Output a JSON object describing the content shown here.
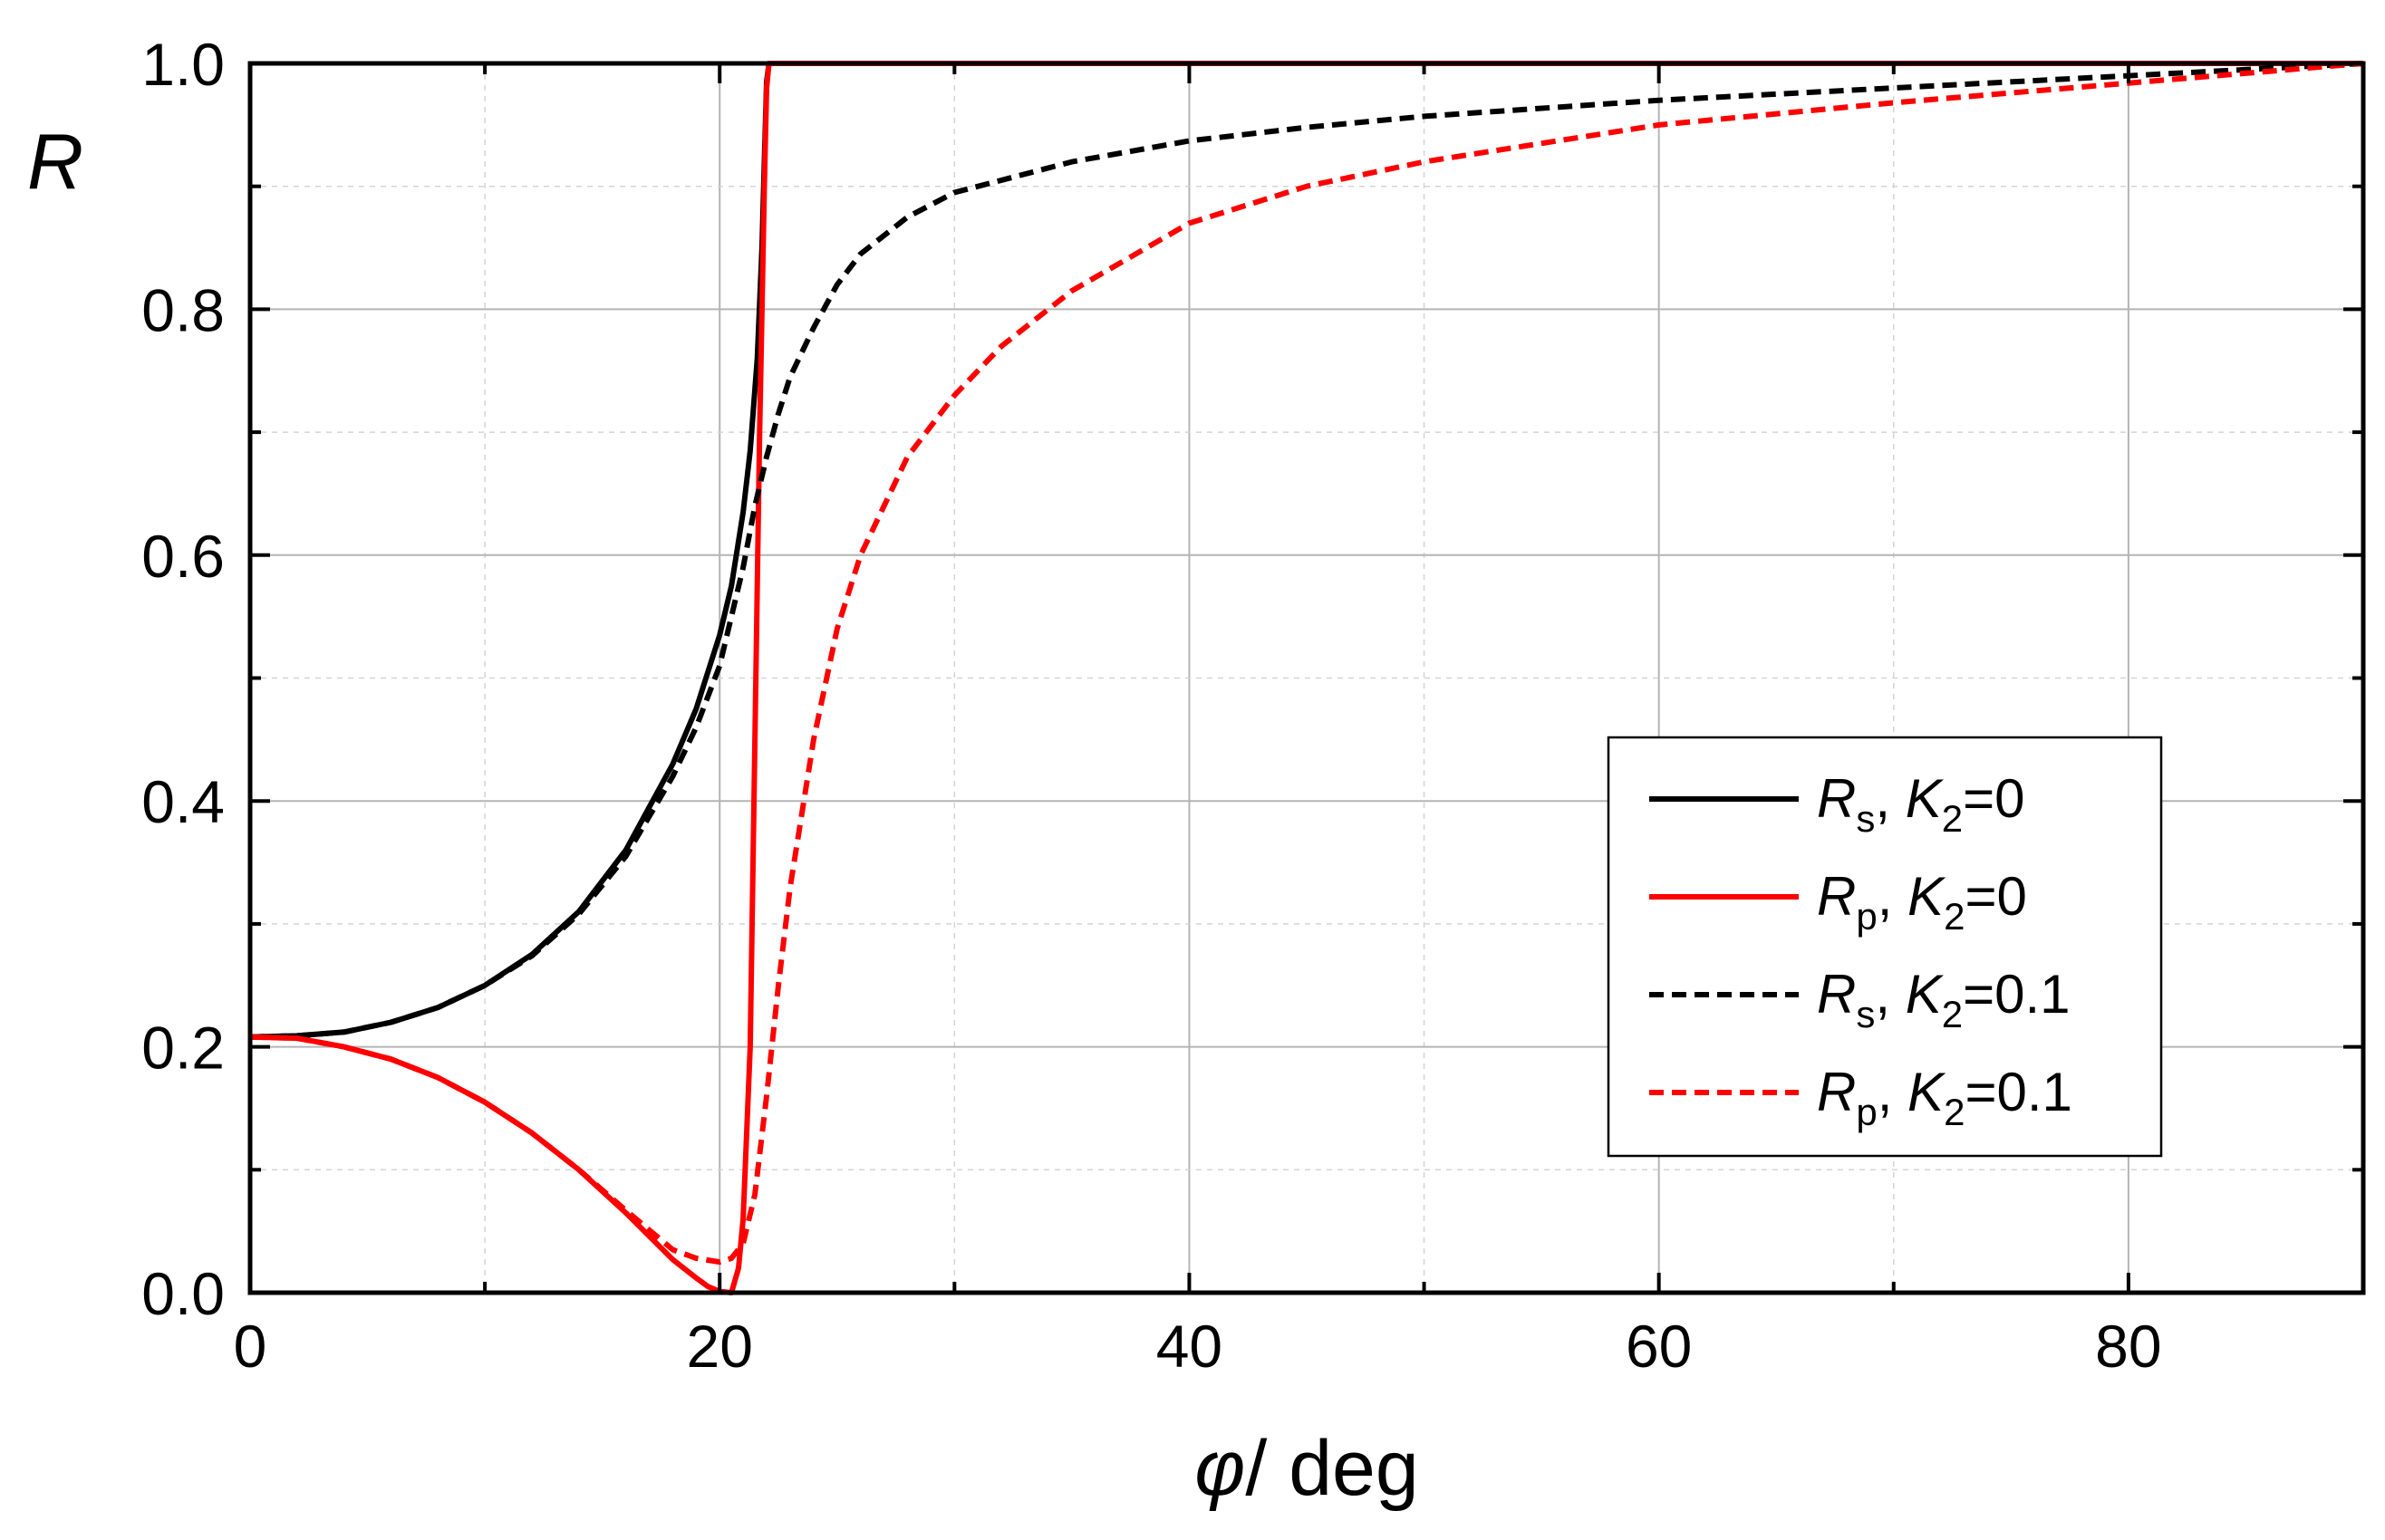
{
  "chart_data": {
    "type": "line",
    "xlabel": {
      "symbol": "φ",
      "rest": "/ deg"
    },
    "ylabel": "R",
    "xlim": [
      0,
      90
    ],
    "ylim": [
      0,
      1.0
    ],
    "xticks": [
      "0",
      "20",
      "40",
      "60",
      "80"
    ],
    "yticks": [
      "0.0",
      "0.2",
      "0.4",
      "0.6",
      "0.8",
      "1.0"
    ],
    "grid": true,
    "legend_position": "lower-right",
    "series": [
      {
        "name": "R_s, K_2=0",
        "legend": {
          "sym": "R",
          "sub": "s",
          "k": "K",
          "ksub": "2",
          "val": "=0"
        },
        "color": "#000000",
        "dash": false,
        "x": [
          0,
          2,
          4,
          6,
          8,
          10,
          12,
          14,
          16,
          18,
          19,
          20,
          20.5,
          21,
          21.3,
          21.6,
          21.8,
          21.9,
          22.0,
          22.1,
          25,
          30,
          40,
          50,
          60,
          70,
          80,
          90
        ],
        "y": [
          0.208,
          0.209,
          0.212,
          0.22,
          0.232,
          0.25,
          0.275,
          0.31,
          0.36,
          0.43,
          0.475,
          0.535,
          0.575,
          0.635,
          0.685,
          0.76,
          0.85,
          0.92,
          0.985,
          1.0,
          1.0,
          1.0,
          1.0,
          1.0,
          1.0,
          1.0,
          1.0,
          1.0
        ]
      },
      {
        "name": "R_p, K_2=0",
        "legend": {
          "sym": "R",
          "sub": "p",
          "k": "K",
          "ksub": "2",
          "val": "=0"
        },
        "color": "#ff0000",
        "dash": false,
        "x": [
          0,
          2,
          4,
          6,
          8,
          10,
          12,
          14,
          16,
          18,
          19,
          19.5,
          20,
          20.5,
          20.8,
          21.0,
          21.3,
          21.5,
          21.7,
          21.9,
          22.0,
          22.1,
          25,
          30,
          40,
          50,
          60,
          70,
          80,
          90
        ],
        "y": [
          0.208,
          0.207,
          0.2,
          0.19,
          0.175,
          0.155,
          0.13,
          0.1,
          0.065,
          0.027,
          0.012,
          0.005,
          0.001,
          0.0,
          0.02,
          0.06,
          0.2,
          0.45,
          0.7,
          0.9,
          0.98,
          1.0,
          1.0,
          1.0,
          1.0,
          1.0,
          1.0,
          1.0,
          1.0,
          1.0
        ]
      },
      {
        "name": "R_s, K_2=0.1",
        "legend": {
          "sym": "R",
          "sub": "s",
          "k": "K",
          "ksub": "2",
          "val": "=0.1"
        },
        "color": "#000000",
        "dash": true,
        "x": [
          0,
          2,
          4,
          6,
          8,
          10,
          12,
          14,
          16,
          18,
          19,
          20,
          21,
          21.5,
          22,
          22.5,
          23,
          24,
          25,
          26,
          28,
          30,
          35,
          40,
          45,
          50,
          60,
          70,
          80,
          90
        ],
        "y": [
          0.208,
          0.209,
          0.212,
          0.22,
          0.232,
          0.25,
          0.274,
          0.308,
          0.355,
          0.42,
          0.46,
          0.51,
          0.59,
          0.64,
          0.68,
          0.715,
          0.745,
          0.785,
          0.82,
          0.845,
          0.875,
          0.895,
          0.92,
          0.937,
          0.948,
          0.957,
          0.97,
          0.98,
          0.99,
          1.0
        ]
      },
      {
        "name": "R_p, K_2=0.1",
        "legend": {
          "sym": "R",
          "sub": "p",
          "k": "K",
          "ksub": "2",
          "val": "=0.1"
        },
        "color": "#ff0000",
        "dash": true,
        "x": [
          0,
          2,
          4,
          6,
          8,
          10,
          12,
          14,
          16,
          18,
          19,
          20,
          20.5,
          21,
          21.5,
          22,
          22.5,
          23,
          24,
          25,
          26,
          28,
          30,
          32,
          35,
          40,
          45,
          50,
          60,
          70,
          80,
          90
        ],
        "y": [
          0.208,
          0.207,
          0.2,
          0.19,
          0.175,
          0.155,
          0.13,
          0.1,
          0.067,
          0.035,
          0.028,
          0.025,
          0.028,
          0.04,
          0.08,
          0.16,
          0.25,
          0.33,
          0.45,
          0.54,
          0.6,
          0.68,
          0.73,
          0.77,
          0.815,
          0.87,
          0.9,
          0.92,
          0.95,
          0.968,
          0.984,
          1.0
        ]
      }
    ]
  }
}
